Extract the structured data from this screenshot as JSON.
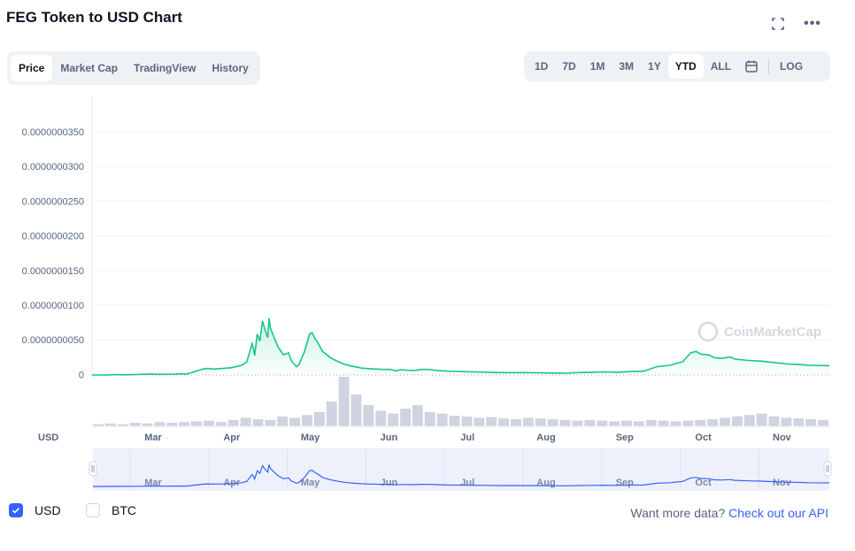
{
  "title": "FEG Token to USD Chart",
  "icons": {
    "fullscreen": "fullscreen-icon",
    "more": "more-icon",
    "calendar": "calendar-icon",
    "watermark": "coinmarketcap-logo-icon",
    "check": "check-icon"
  },
  "tabs": [
    {
      "label": "Price",
      "active": true
    },
    {
      "label": "Market Cap",
      "active": false
    },
    {
      "label": "TradingView",
      "active": false
    },
    {
      "label": "History",
      "active": false
    }
  ],
  "ranges": [
    {
      "label": "1D",
      "active": false
    },
    {
      "label": "7D",
      "active": false
    },
    {
      "label": "1M",
      "active": false
    },
    {
      "label": "3M",
      "active": false
    },
    {
      "label": "1Y",
      "active": false
    },
    {
      "label": "YTD",
      "active": true
    },
    {
      "label": "ALL",
      "active": false
    }
  ],
  "log_label": "LOG",
  "more_glyph": "•••",
  "watermark": "CoinMarketCap",
  "currency_label": "USD",
  "legend": [
    {
      "label": "USD",
      "checked": true
    },
    {
      "label": "BTC",
      "checked": false
    }
  ],
  "api": {
    "prefix": "Want more data? ",
    "link": "Check out our API"
  },
  "colors": {
    "price_line": "#16c784",
    "volume": "#cfd4e0",
    "navigator_line": "#3861fb",
    "accent": "#3861fb"
  },
  "chart_data": {
    "type": "area",
    "series": [
      {
        "values": [
          [
            0,
            0
          ],
          [
            0.6,
            0
          ],
          [
            1.0,
            0.01
          ],
          [
            1.3,
            0.06
          ],
          [
            1.6,
            0.03
          ],
          [
            2.0,
            0.06
          ],
          [
            2.6,
            0.14
          ],
          [
            3.0,
            0.09
          ],
          [
            3.5,
            0.12
          ],
          [
            3.8,
            0.18
          ],
          [
            4.0,
            0.14
          ],
          [
            4.6,
            0.84
          ],
          [
            4.8,
            0.95
          ],
          [
            5.0,
            0.86
          ],
          [
            5.2,
            0.91
          ],
          [
            5.7,
            1.05
          ],
          [
            6.1,
            1.4
          ],
          [
            6.3,
            1.9
          ],
          [
            6.5,
            4.5
          ],
          [
            6.55,
            3.8
          ],
          [
            6.6,
            2.8
          ],
          [
            6.7,
            5.9
          ],
          [
            6.8,
            4.9
          ],
          [
            6.9,
            7.8
          ],
          [
            7.0,
            6.5
          ],
          [
            7.1,
            5.4
          ],
          [
            7.15,
            8.2
          ],
          [
            7.2,
            6.8
          ],
          [
            7.3,
            5.8
          ],
          [
            7.5,
            4.0
          ],
          [
            7.7,
            2.9
          ],
          [
            7.9,
            3.2
          ],
          [
            8.0,
            2.1
          ],
          [
            8.2,
            1.2
          ],
          [
            8.3,
            1.5
          ],
          [
            8.5,
            3.3
          ],
          [
            8.7,
            5.9
          ],
          [
            8.8,
            6.1
          ],
          [
            8.9,
            5.3
          ],
          [
            9.0,
            4.8
          ],
          [
            9.2,
            3.4
          ],
          [
            9.5,
            2.5
          ],
          [
            9.7,
            2.1
          ],
          [
            10.0,
            1.6
          ],
          [
            10.3,
            1.3
          ],
          [
            10.7,
            1.0
          ],
          [
            11.0,
            0.9
          ],
          [
            11.5,
            0.8
          ],
          [
            11.8,
            0.8
          ],
          [
            12.0,
            0.6
          ],
          [
            12.2,
            0.75
          ],
          [
            12.4,
            0.7
          ],
          [
            12.7,
            0.65
          ],
          [
            13.0,
            0.8
          ],
          [
            13.3,
            0.8
          ],
          [
            13.6,
            0.65
          ],
          [
            14.0,
            0.55
          ],
          [
            14.5,
            0.5
          ],
          [
            15.0,
            0.45
          ],
          [
            15.5,
            0.4
          ],
          [
            16.0,
            0.35
          ],
          [
            16.5,
            0.35
          ],
          [
            17.0,
            0.35
          ],
          [
            17.5,
            0.3
          ],
          [
            18.0,
            0.28
          ],
          [
            18.5,
            0.25
          ],
          [
            19.0,
            0.35
          ],
          [
            19.5,
            0.4
          ],
          [
            20.0,
            0.45
          ],
          [
            20.5,
            0.4
          ],
          [
            21.0,
            0.5
          ],
          [
            21.5,
            0.55
          ],
          [
            22.0,
            1.2
          ],
          [
            22.5,
            1.4
          ],
          [
            23.0,
            1.9
          ],
          [
            23.3,
            3.2
          ],
          [
            23.5,
            3.4
          ],
          [
            23.7,
            3.0
          ],
          [
            24.0,
            2.9
          ],
          [
            24.2,
            2.5
          ],
          [
            24.5,
            2.4
          ],
          [
            24.8,
            2.6
          ],
          [
            25.0,
            2.3
          ],
          [
            25.5,
            2.1
          ],
          [
            26.0,
            2.0
          ],
          [
            26.5,
            1.8
          ],
          [
            27.0,
            1.6
          ],
          [
            27.5,
            1.5
          ],
          [
            27.8,
            1.4
          ],
          [
            28.0,
            1.35
          ]
        ]
      }
    ],
    "y_ticks": [
      "0.0000000350",
      "0.0000000300",
      "0.0000000250",
      "0.0000000200",
      "0.0000000150",
      "0.0000000100",
      "0.0000000050",
      "0"
    ],
    "x_ticks": [
      "Mar",
      "Apr",
      "May",
      "Jun",
      "Jul",
      "Aug",
      "Sep",
      "Oct",
      "Nov"
    ],
    "volume_values": [
      3,
      4,
      3,
      5,
      4,
      6,
      5,
      6,
      7,
      8,
      6,
      9,
      12,
      10,
      9,
      14,
      12,
      16,
      20,
      35,
      70,
      45,
      30,
      22,
      18,
      25,
      30,
      20,
      18,
      15,
      14,
      12,
      13,
      11,
      10,
      12,
      11,
      10,
      9,
      8,
      9,
      8,
      7,
      8,
      7,
      9,
      8,
      7,
      8,
      9,
      10,
      12,
      14,
      16,
      18,
      14,
      12,
      11,
      10,
      9
    ]
  }
}
